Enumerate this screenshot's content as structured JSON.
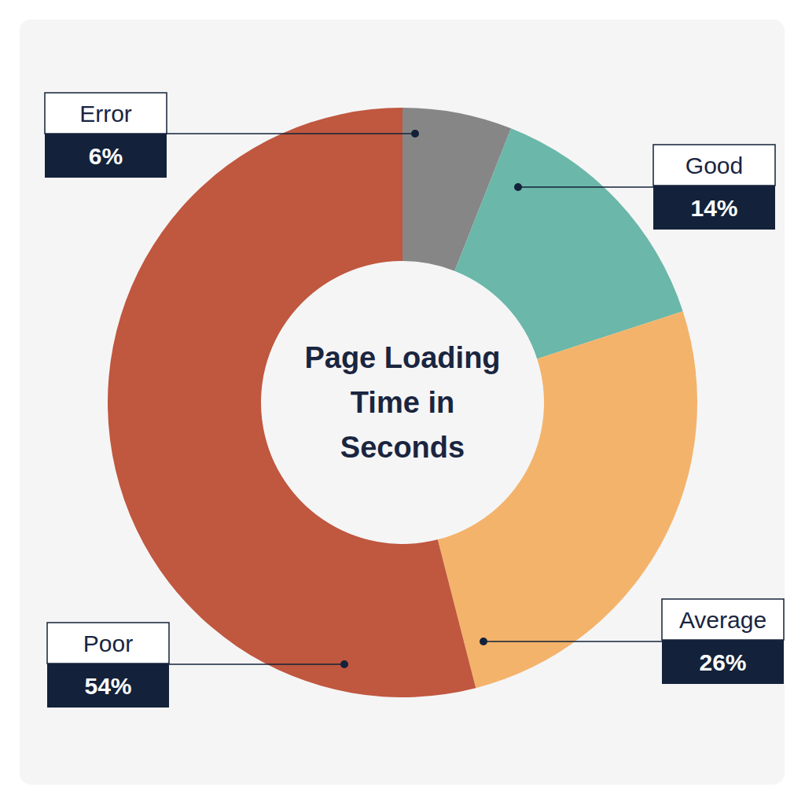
{
  "chart_data": {
    "type": "donut",
    "title": "Page Loading Time in Seconds",
    "categories": [
      "Error",
      "Good",
      "Average",
      "Poor"
    ],
    "values": [
      6,
      14,
      26,
      54
    ],
    "value_labels": [
      "6%",
      "14%",
      "26%",
      "54%"
    ],
    "colors": [
      "#868686",
      "#6bb7a9",
      "#f4b36b",
      "#c0573f"
    ],
    "data_labels": true
  }
}
